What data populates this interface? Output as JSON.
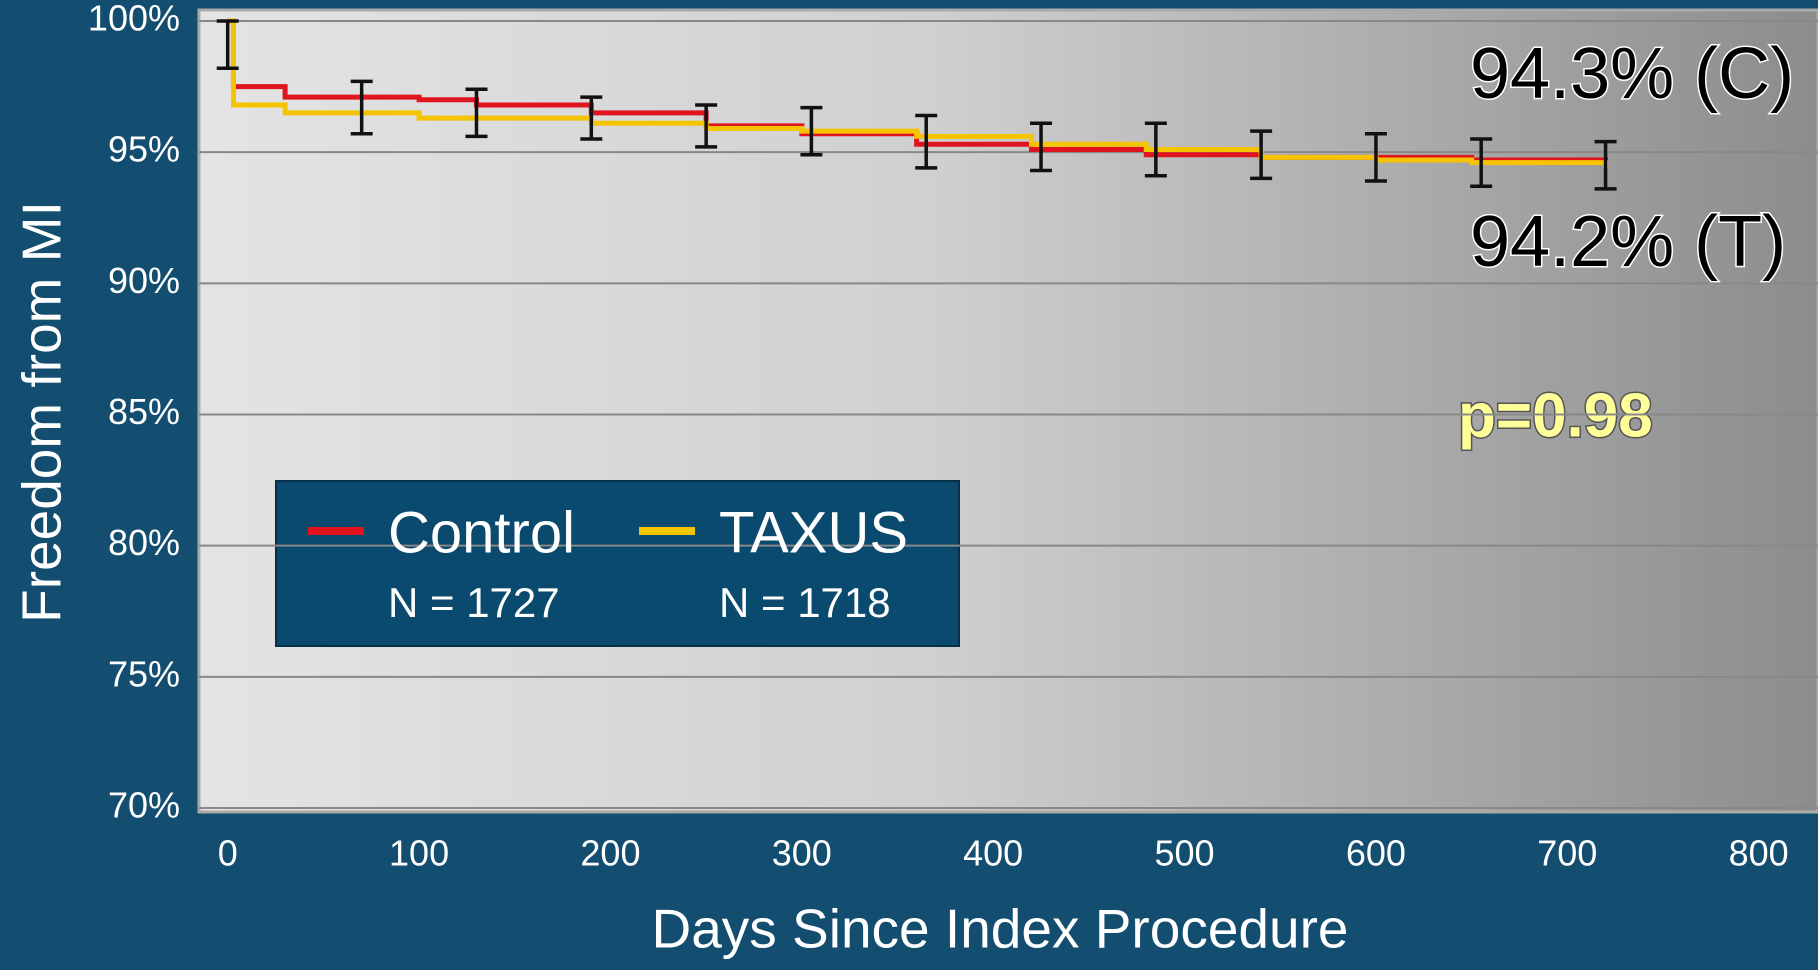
{
  "chart_data": {
    "type": "step",
    "y_label": "Freedom from MI",
    "x_label": "Days Since Index Procedure",
    "xlim": [
      -15,
      831
    ],
    "xticks": [
      0,
      100,
      200,
      300,
      400,
      500,
      600,
      700,
      800
    ],
    "ylim": [
      70,
      100
    ],
    "yticks": [
      {
        "value": 70,
        "label": "70%"
      },
      {
        "value": 75,
        "label": "75%"
      },
      {
        "value": 80,
        "label": "80%"
      },
      {
        "value": 85,
        "label": "85%"
      },
      {
        "value": 90,
        "label": "90%"
      },
      {
        "value": 95,
        "label": "95%"
      },
      {
        "value": 100,
        "label": "100%"
      }
    ],
    "grid": true,
    "legend": "lower left",
    "series": [
      {
        "name": "Control",
        "n_label": "N = 1727",
        "color": "#e0141e",
        "x": [
          0,
          3,
          30,
          100,
          130,
          190,
          250,
          300,
          360,
          420,
          480,
          540,
          600,
          650,
          720
        ],
        "values": [
          100,
          97.5,
          97.1,
          97.0,
          96.8,
          96.5,
          96.0,
          95.7,
          95.3,
          95.1,
          94.9,
          94.8,
          94.8,
          94.7,
          94.5
        ]
      },
      {
        "name": "TAXUS",
        "n_label": "N = 1718",
        "color": "#f5c400",
        "x": [
          0,
          3,
          30,
          100,
          190,
          250,
          300,
          360,
          420,
          480,
          540,
          600,
          650,
          720
        ],
        "values": [
          100,
          96.8,
          96.5,
          96.3,
          96.1,
          95.9,
          95.8,
          95.6,
          95.3,
          95.1,
          94.8,
          94.7,
          94.6,
          94.4
        ]
      }
    ],
    "error_bars": {
      "color": "#111111",
      "x": [
        0,
        70,
        130,
        190,
        250,
        305,
        365,
        425,
        485,
        540,
        600,
        655,
        720
      ],
      "values": [
        99.1,
        96.7,
        96.5,
        96.3,
        96.0,
        95.8,
        95.4,
        95.2,
        95.1,
        94.9,
        94.8,
        94.6,
        94.5
      ],
      "errors": [
        0.9,
        1.0,
        0.9,
        0.8,
        0.8,
        0.9,
        1.0,
        0.9,
        1.0,
        0.9,
        0.9,
        0.9,
        0.9
      ]
    },
    "annotations": [
      "94.3% (C)",
      "94.2% (T)",
      "p=0.98"
    ]
  }
}
